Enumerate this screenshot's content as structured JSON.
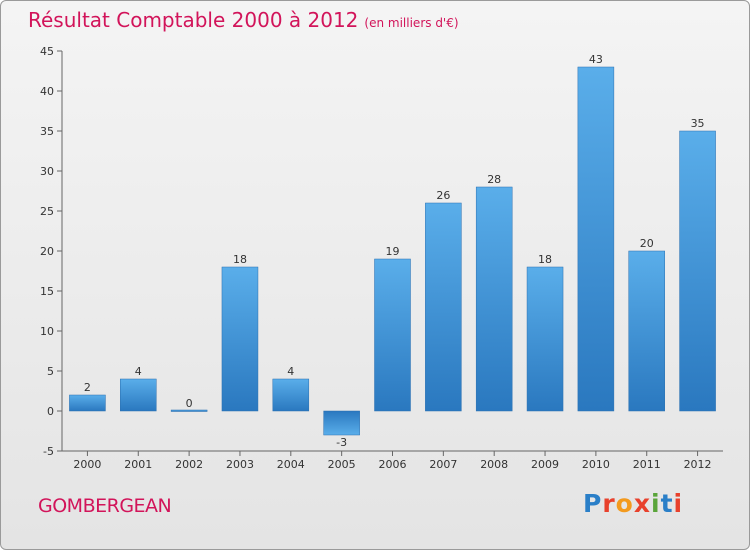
{
  "header": {
    "title": "Résultat Comptable 2000 à 2012",
    "subtitle": "(en milliers d'€)"
  },
  "footer": {
    "commune": "GOMBERGEAN",
    "logo_text": "Proxiti",
    "logo_colors": [
      "#2a7fc8",
      "#e8412c",
      "#f39a1e",
      "#e8412c",
      "#5aa53a",
      "#2a7fc8",
      "#e8412c"
    ]
  },
  "chart_data": {
    "type": "bar",
    "title": "Résultat Comptable 2000 à 2012",
    "subtitle": "(en milliers d'€)",
    "xlabel": "",
    "ylabel": "",
    "categories": [
      "2000",
      "2001",
      "2002",
      "2003",
      "2004",
      "2005",
      "2006",
      "2007",
      "2008",
      "2009",
      "2010",
      "2011",
      "2012"
    ],
    "values": [
      2,
      4,
      0,
      18,
      4,
      -3,
      19,
      26,
      28,
      18,
      43,
      20,
      35
    ],
    "data_labels": [
      "2",
      "4",
      "0",
      "18",
      "4",
      "-3",
      "19",
      "26",
      "28",
      "18",
      "43",
      "20",
      "35"
    ],
    "ylim": [
      -5,
      45
    ],
    "yticks": [
      -5,
      0,
      5,
      10,
      15,
      20,
      25,
      30,
      35,
      40,
      45
    ],
    "grid": false,
    "bar_color": "#3a8fd6"
  }
}
